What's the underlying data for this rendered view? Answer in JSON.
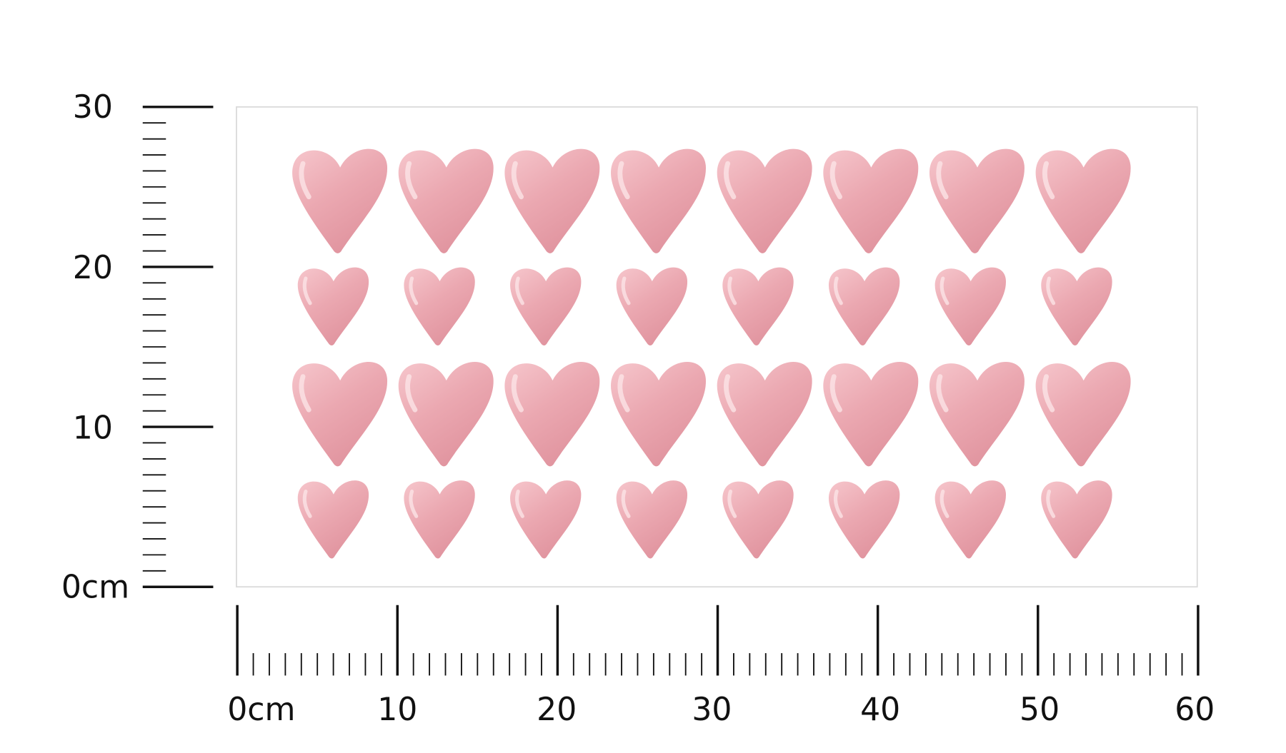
{
  "vertical_ruler": {
    "unit": "cm",
    "labels": [
      "0cm",
      "10",
      "20",
      "30"
    ],
    "max": 30
  },
  "horizontal_ruler": {
    "unit": "cm",
    "labels": [
      "0cm",
      "10",
      "20",
      "30",
      "40",
      "50",
      "60"
    ],
    "max": 60
  },
  "sheet": {
    "border_color": "#d9d9d9",
    "heart_color": "#e8a3ad",
    "heart_rows": [
      {
        "size": "large",
        "count": 8
      },
      {
        "size": "small",
        "count": 8
      },
      {
        "size": "large",
        "count": 8
      },
      {
        "size": "small",
        "count": 8
      }
    ]
  }
}
